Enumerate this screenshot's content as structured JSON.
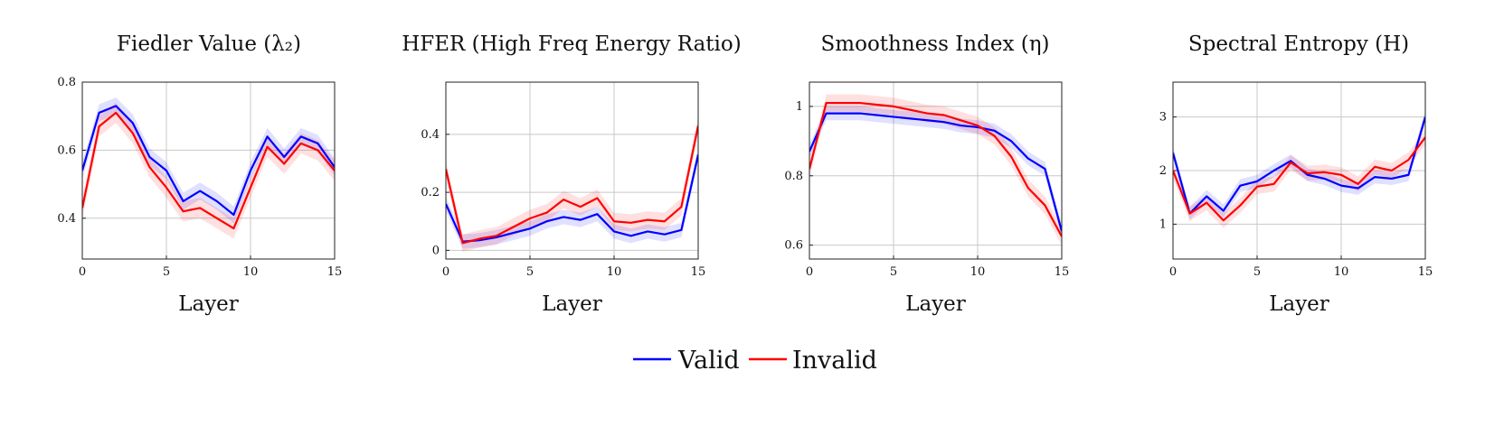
{
  "chart_data": [
    {
      "type": "line",
      "title": "Fiedler Value (λ₂)",
      "xlabel": "Layer",
      "ylabel": "",
      "xlim": [
        0,
        15
      ],
      "ylim": [
        0.28,
        0.8
      ],
      "xticks": [
        0,
        5,
        10,
        15
      ],
      "yticks": [
        0.4,
        0.6,
        0.8
      ],
      "grid": true,
      "x": [
        0,
        1,
        2,
        3,
        4,
        5,
        6,
        7,
        8,
        9,
        10,
        11,
        12,
        13,
        14,
        15
      ],
      "series": [
        {
          "name": "Valid",
          "color": "#0000ff",
          "values": [
            0.54,
            0.71,
            0.73,
            0.68,
            0.58,
            0.54,
            0.45,
            0.48,
            0.45,
            0.41,
            0.54,
            0.64,
            0.58,
            0.64,
            0.62,
            0.55
          ],
          "band": 0.025
        },
        {
          "name": "Invalid",
          "color": "#ff0000",
          "values": [
            0.43,
            0.67,
            0.71,
            0.65,
            0.55,
            0.49,
            0.42,
            0.43,
            0.4,
            0.37,
            0.49,
            0.61,
            0.56,
            0.62,
            0.6,
            0.54
          ],
          "band": 0.03
        }
      ]
    },
    {
      "type": "line",
      "title": "HFER (High Freq Energy Ratio)",
      "xlabel": "Layer",
      "ylabel": "",
      "xlim": [
        0,
        15
      ],
      "ylim": [
        -0.03,
        0.58
      ],
      "xticks": [
        0,
        5,
        10,
        15
      ],
      "yticks": [
        0,
        0.2,
        0.4
      ],
      "grid": true,
      "x": [
        0,
        1,
        2,
        3,
        4,
        5,
        6,
        7,
        8,
        9,
        10,
        11,
        12,
        13,
        14,
        15
      ],
      "series": [
        {
          "name": "Valid",
          "color": "#0000ff",
          "values": [
            0.16,
            0.03,
            0.035,
            0.045,
            0.06,
            0.075,
            0.1,
            0.115,
            0.105,
            0.125,
            0.065,
            0.05,
            0.065,
            0.055,
            0.07,
            0.33
          ],
          "band": 0.025
        },
        {
          "name": "Invalid",
          "color": "#ff0000",
          "values": [
            0.28,
            0.025,
            0.04,
            0.05,
            0.08,
            0.11,
            0.13,
            0.175,
            0.15,
            0.18,
            0.1,
            0.095,
            0.105,
            0.1,
            0.15,
            0.43
          ],
          "band": 0.03
        }
      ]
    },
    {
      "type": "line",
      "title": "Smoothness Index (η)",
      "xlabel": "Layer",
      "ylabel": "",
      "xlim": [
        0,
        15
      ],
      "ylim": [
        0.56,
        1.07
      ],
      "xticks": [
        0,
        5,
        10,
        15
      ],
      "yticks": [
        0.6,
        0.8,
        1
      ],
      "grid": true,
      "x": [
        0,
        1,
        2,
        3,
        4,
        5,
        6,
        7,
        8,
        9,
        10,
        11,
        12,
        13,
        14,
        15
      ],
      "series": [
        {
          "name": "Valid",
          "color": "#0000ff",
          "values": [
            0.87,
            0.98,
            0.98,
            0.98,
            0.975,
            0.97,
            0.965,
            0.96,
            0.955,
            0.945,
            0.94,
            0.93,
            0.9,
            0.85,
            0.82,
            0.64
          ],
          "band": 0.02
        },
        {
          "name": "Invalid",
          "color": "#ff0000",
          "values": [
            0.82,
            1.01,
            1.01,
            1.01,
            1.005,
            1.0,
            0.99,
            0.98,
            0.975,
            0.96,
            0.945,
            0.915,
            0.855,
            0.765,
            0.715,
            0.625
          ],
          "band": 0.025
        }
      ]
    },
    {
      "type": "line",
      "title": "Spectral Entropy (H)",
      "xlabel": "Layer",
      "ylabel": "",
      "xlim": [
        0,
        15
      ],
      "ylim": [
        0.35,
        3.65
      ],
      "xticks": [
        0,
        5,
        10,
        15
      ],
      "yticks": [
        1,
        2,
        3
      ],
      "grid": true,
      "x": [
        0,
        1,
        2,
        3,
        4,
        5,
        6,
        7,
        8,
        9,
        10,
        11,
        12,
        13,
        14,
        15
      ],
      "series": [
        {
          "name": "Valid",
          "color": "#0000ff",
          "values": [
            2.33,
            1.2,
            1.52,
            1.25,
            1.72,
            1.8,
            2.0,
            2.18,
            1.92,
            1.85,
            1.72,
            1.67,
            1.88,
            1.85,
            1.92,
            3.0
          ],
          "band": 0.12
        },
        {
          "name": "Invalid",
          "color": "#ff0000",
          "values": [
            2.0,
            1.2,
            1.4,
            1.07,
            1.35,
            1.7,
            1.75,
            2.15,
            1.95,
            1.97,
            1.92,
            1.75,
            2.07,
            2.0,
            2.2,
            2.62
          ],
          "band": 0.14
        }
      ]
    }
  ],
  "legend": {
    "position": "bottom-center",
    "entries": [
      {
        "label": "Valid",
        "color": "#0000ff"
      },
      {
        "label": "Invalid",
        "color": "#ff0000"
      }
    ]
  }
}
